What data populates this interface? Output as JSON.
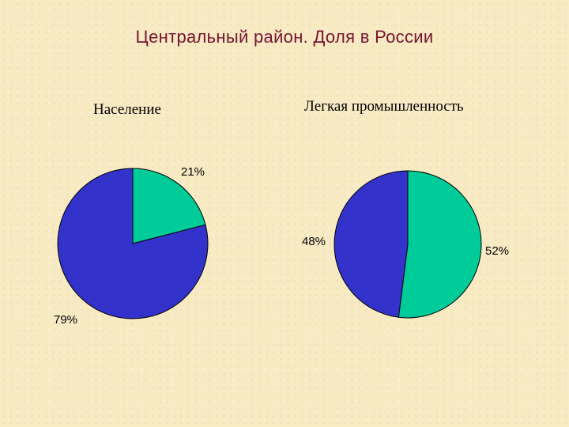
{
  "slide": {
    "title": "Центральный район. Доля в России"
  },
  "chart_data": [
    {
      "type": "pie",
      "title": "Население",
      "slices": [
        {
          "label": "21%",
          "value": 21,
          "color": "#00cc99"
        },
        {
          "label": "79%",
          "value": 79,
          "color": "#3333cc"
        }
      ]
    },
    {
      "type": "pie",
      "title": "Легкая промышленность",
      "slices": [
        {
          "label": "52%",
          "value": 52,
          "color": "#00cc99"
        },
        {
          "label": "48%",
          "value": 48,
          "color": "#3333cc"
        }
      ]
    }
  ]
}
